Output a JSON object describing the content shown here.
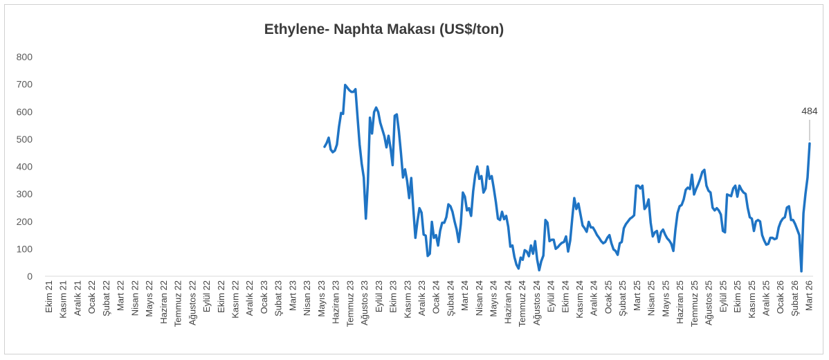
{
  "chart_data": {
    "type": "line",
    "title": "Ethylene- Naphta Makası (US$/ton)",
    "xlabel": "",
    "ylabel": "",
    "ylim": [
      0,
      800
    ],
    "yticks": [
      0,
      100,
      200,
      300,
      400,
      500,
      600,
      700,
      800
    ],
    "grid": false,
    "legend": "none",
    "line_color": "#1f74c4",
    "x_labels": [
      "Ekim 21",
      "Kasım 21",
      "Aralık 21",
      "Ocak 22",
      "Şubat 22",
      "Mart 22",
      "Nisan 22",
      "Mayıs 22",
      "Haziran 22",
      "Temmuz 22",
      "Ağustos 22",
      "Eylül 22",
      "Ekim 22",
      "Kasım 22",
      "Aralık 22",
      "Ocak 23",
      "Şubat 23",
      "Mart 23",
      "Nisan 23",
      "Mayıs 23",
      "Haziran 23",
      "Temmuz 23",
      "Ağustos 23",
      "Eylül 23",
      "Ekim 23",
      "Kasım 23",
      "Aralık 23",
      "Ocak 24",
      "Şubat 24",
      "Mart 24",
      "Nisan 24",
      "Mayıs 24",
      "Haziran 24",
      "Temmuz 24",
      "Ağustos 24",
      "Eylül 24",
      "Ekim 24",
      "Kasım 24",
      "Aralık 24",
      "Ocak 25",
      "Şubat 25",
      "Mart 25",
      "Nisan 25",
      "Mayıs 25",
      "Haziran 25",
      "Temmuz 25",
      "Ağustos 25",
      "Eylül 25",
      "Ekim 25",
      "Kasım 25",
      "Aralık 25",
      "Ocak 26",
      "Şubat 26",
      "Mart 26"
    ],
    "series": [
      {
        "values": [
          472,
          485,
          505,
          462,
          452,
          458,
          480,
          545,
          595,
          592,
          697,
          688,
          678,
          672,
          672,
          682,
          580,
          480,
          410,
          360,
          210,
          340,
          578,
          520,
          598,
          615,
          598,
          560,
          535,
          510,
          470,
          512,
          465,
          405,
          585,
          590,
          530,
          450,
          360,
          390,
          348,
          285,
          358,
          245,
          140,
          200,
          248,
          232,
          152,
          148,
          74,
          82,
          198,
          140,
          150,
          112,
          165,
          195,
          195,
          215,
          262,
          255,
          235,
          200,
          170,
          125,
          190,
          305,
          290,
          240,
          248,
          220,
          310,
          370,
          400,
          355,
          365,
          305,
          320,
          400,
          355,
          365,
          320,
          270,
          210,
          205,
          235,
          208,
          220,
          180,
          108,
          112,
          70,
          42,
          28,
          68,
          60,
          95,
          90,
          73,
          112,
          82,
          128,
          62,
          22,
          55,
          75,
          205,
          195,
          128,
          133,
          133,
          100,
          106,
          115,
          122,
          125,
          145,
          90,
          130,
          212,
          285,
          245,
          265,
          225,
          185,
          175,
          162,
          198,
          178,
          178,
          165,
          150,
          140,
          128,
          120,
          125,
          140,
          150,
          120,
          98,
          92,
          78,
          120,
          125,
          175,
          190,
          200,
          210,
          215,
          222,
          330,
          330,
          320,
          330,
          245,
          255,
          280,
          195,
          145,
          160,
          165,
          125,
          160,
          170,
          152,
          138,
          130,
          118,
          92,
          170,
          230,
          255,
          260,
          280,
          315,
          323,
          318,
          370,
          298,
          318,
          335,
          355,
          380,
          388,
          330,
          312,
          305,
          250,
          240,
          248,
          240,
          225,
          165,
          160,
          298,
          295,
          292,
          320,
          330,
          290,
          330,
          315,
          305,
          300,
          250,
          215,
          210,
          165,
          200,
          205,
          200,
          150,
          130,
          115,
          118,
          140,
          140,
          135,
          138,
          178,
          198,
          210,
          215,
          250,
          255,
          205,
          205,
          190,
          170,
          150,
          18,
          230,
          300,
          360,
          484
        ]
      }
    ],
    "annotations": [
      {
        "label": "484"
      }
    ]
  }
}
